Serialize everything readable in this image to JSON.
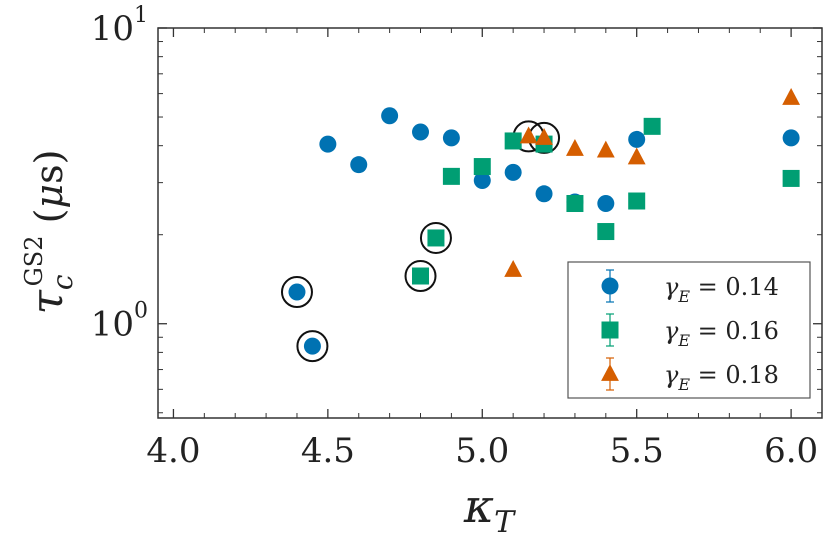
{
  "chart_data": {
    "type": "scatter",
    "title": "",
    "xlabel": "κ_T",
    "ylabel": "τ_c^GS2 (μs)",
    "xscale": "linear",
    "yscale": "log",
    "xlim": [
      3.95,
      6.1
    ],
    "ylim": [
      0.48,
      10
    ],
    "xticks": [
      {
        "value": 4.0,
        "label": "4.0"
      },
      {
        "value": 4.5,
        "label": "4.5"
      },
      {
        "value": 5.0,
        "label": "5.0"
      },
      {
        "value": 5.5,
        "label": "5.5"
      },
      {
        "value": 6.0,
        "label": "6.0"
      }
    ],
    "yticks": [
      {
        "value": 1,
        "base": "10",
        "exp": "0"
      },
      {
        "value": 10,
        "base": "10",
        "exp": "1"
      }
    ],
    "legend_position": "bottom-right",
    "series": [
      {
        "name": "γ_E = 0.14",
        "legend_label": "γE = 0.14",
        "marker": "circle",
        "color": "#0072b2",
        "points": [
          {
            "x": 4.4,
            "y": 1.28
          },
          {
            "x": 4.45,
            "y": 0.84
          },
          {
            "x": 4.5,
            "y": 4.05
          },
          {
            "x": 4.6,
            "y": 3.45
          },
          {
            "x": 4.7,
            "y": 5.05
          },
          {
            "x": 4.8,
            "y": 4.45
          },
          {
            "x": 4.9,
            "y": 4.25
          },
          {
            "x": 5.0,
            "y": 3.05
          },
          {
            "x": 5.1,
            "y": 3.25
          },
          {
            "x": 5.2,
            "y": 2.75
          },
          {
            "x": 5.3,
            "y": 2.58
          },
          {
            "x": 5.4,
            "y": 2.55
          },
          {
            "x": 5.5,
            "y": 4.2
          },
          {
            "x": 6.0,
            "y": 4.25
          }
        ]
      },
      {
        "name": "γ_E = 0.16",
        "legend_label": "γE = 0.16",
        "marker": "square",
        "color": "#009e73",
        "points": [
          {
            "x": 4.8,
            "y": 1.45
          },
          {
            "x": 4.85,
            "y": 1.95
          },
          {
            "x": 4.9,
            "y": 3.15
          },
          {
            "x": 5.0,
            "y": 3.4
          },
          {
            "x": 5.1,
            "y": 4.15
          },
          {
            "x": 5.2,
            "y": 4.05
          },
          {
            "x": 5.3,
            "y": 2.55
          },
          {
            "x": 5.4,
            "y": 2.05
          },
          {
            "x": 5.5,
            "y": 2.6
          },
          {
            "x": 5.55,
            "y": 4.65
          },
          {
            "x": 6.0,
            "y": 3.1
          }
        ]
      },
      {
        "name": "γ_E = 0.18",
        "legend_label": "γE = 0.18",
        "marker": "triangle",
        "color": "#d55e00",
        "points": [
          {
            "x": 5.1,
            "y": 1.52
          },
          {
            "x": 5.15,
            "y": 4.3
          },
          {
            "x": 5.2,
            "y": 4.25
          },
          {
            "x": 5.3,
            "y": 3.9
          },
          {
            "x": 5.4,
            "y": 3.85
          },
          {
            "x": 5.5,
            "y": 3.65
          },
          {
            "x": 6.0,
            "y": 5.8
          }
        ]
      }
    ],
    "circled_points": [
      {
        "x": 4.4,
        "y": 1.28
      },
      {
        "x": 4.45,
        "y": 0.84
      },
      {
        "x": 4.8,
        "y": 1.45
      },
      {
        "x": 4.85,
        "y": 1.95
      },
      {
        "x": 5.15,
        "y": 4.3
      },
      {
        "x": 5.2,
        "y": 4.25
      }
    ]
  }
}
